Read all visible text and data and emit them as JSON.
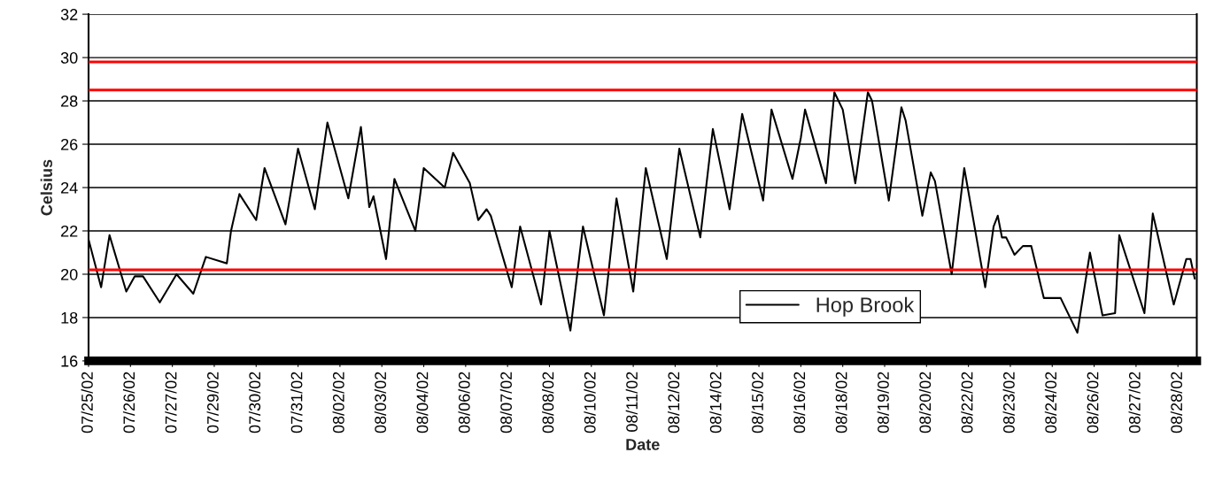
{
  "chart_data": {
    "type": "line",
    "xlabel": "Date",
    "ylabel": "Celsius",
    "ylim": [
      16,
      32
    ],
    "yticks": [
      16,
      18,
      20,
      22,
      24,
      26,
      28,
      30,
      32
    ],
    "categories": [
      "07/25/02",
      null,
      null,
      null,
      null,
      null,
      null,
      null,
      null,
      null,
      "07/26/02",
      null,
      null,
      null,
      null,
      null,
      null,
      null,
      null,
      null,
      "07/27/02",
      null,
      null,
      null,
      null,
      null,
      null,
      null,
      null,
      null,
      "07/29/02",
      null,
      null,
      null,
      null,
      null,
      null,
      null,
      null,
      null,
      "07/30/02",
      null,
      null,
      null,
      null,
      null,
      null,
      null,
      null,
      null,
      "07/31/02",
      null,
      null,
      null,
      null,
      null,
      null,
      null,
      null,
      null,
      "08/02/02",
      null,
      null,
      null,
      null,
      null,
      null,
      null,
      null,
      null,
      "08/03/02",
      null,
      null,
      null,
      null,
      null,
      null,
      null,
      null,
      null,
      "08/04/02",
      null,
      null,
      null,
      null,
      null,
      null,
      null,
      null,
      null,
      "08/06/02",
      null,
      null,
      null,
      null,
      null,
      null,
      null,
      null,
      null,
      "08/07/02",
      null,
      null,
      null,
      null,
      null,
      null,
      null,
      null,
      null,
      "08/08/02",
      null,
      null,
      null,
      null,
      null,
      null,
      null,
      null,
      null,
      "08/10/02",
      null,
      null,
      null,
      null,
      null,
      null,
      null,
      null,
      null,
      "08/11/02",
      null,
      null,
      null,
      null,
      null,
      null,
      null,
      null,
      null,
      "08/12/02",
      null,
      null,
      null,
      null,
      null,
      null,
      null,
      null,
      null,
      "08/14/02",
      null,
      null,
      null,
      null,
      null,
      null,
      null,
      null,
      null,
      "08/15/02",
      null,
      null,
      null,
      null,
      null,
      null,
      null,
      null,
      null,
      "08/16/02",
      null,
      null,
      null,
      null,
      null,
      null,
      null,
      null,
      null,
      "08/18/02",
      null,
      null,
      null,
      null,
      null,
      null,
      null,
      null,
      null,
      "08/19/02",
      null,
      null,
      null,
      null,
      null,
      null,
      null,
      null,
      null,
      "08/20/02",
      null,
      null,
      null,
      null,
      null,
      null,
      null,
      null,
      null,
      "08/22/02",
      null,
      null,
      null,
      null,
      null,
      null,
      null,
      null,
      null,
      "08/23/02",
      null,
      null,
      null,
      null,
      null,
      null,
      null,
      null,
      null,
      "08/24/02",
      null,
      null,
      null,
      null,
      null,
      null,
      null,
      null,
      null,
      "08/26/02",
      null,
      null,
      null,
      null,
      null,
      null,
      null,
      null,
      null,
      "08/27/02",
      null,
      null,
      null,
      null,
      null,
      null,
      null,
      null,
      null,
      "08/28/02",
      null,
      null,
      null,
      null
    ],
    "grid": "y",
    "legend": "bottom right",
    "marker": "none",
    "line_style": "solid",
    "ref_lines": [
      {
        "axis": "y",
        "value": 29.8,
        "color": "#ff0000"
      },
      {
        "axis": "y",
        "value": 28.5,
        "color": "#ff0000"
      },
      {
        "axis": "y",
        "value": 20.2,
        "color": "#ff0000"
      }
    ],
    "series": [
      {
        "name": "Hop Brook",
        "color": "#000000",
        "values": [
          21.6,
          null,
          null,
          19.4,
          null,
          21.8,
          null,
          null,
          null,
          19.2,
          null,
          19.9,
          null,
          19.9,
          null,
          null,
          null,
          18.7,
          null,
          null,
          null,
          20.0,
          null,
          null,
          null,
          19.1,
          null,
          null,
          20.8,
          null,
          null,
          null,
          null,
          20.5,
          22.0,
          null,
          23.7,
          null,
          null,
          null,
          22.5,
          null,
          24.9,
          null,
          null,
          null,
          null,
          22.3,
          null,
          null,
          25.8,
          null,
          null,
          null,
          23.0,
          null,
          null,
          27.0,
          null,
          null,
          null,
          null,
          23.5,
          null,
          null,
          26.8,
          null,
          23.1,
          23.6,
          null,
          null,
          20.7,
          null,
          24.4,
          null,
          null,
          null,
          null,
          22.0,
          null,
          24.9,
          null,
          null,
          null,
          null,
          24.0,
          null,
          25.6,
          null,
          null,
          null,
          24.2,
          null,
          22.5,
          null,
          23.0,
          22.7,
          null,
          null,
          null,
          null,
          19.4,
          null,
          22.2,
          null,
          null,
          null,
          null,
          18.6,
          null,
          22.0,
          null,
          null,
          null,
          null,
          17.4,
          null,
          null,
          22.2,
          null,
          null,
          null,
          null,
          18.1,
          null,
          null,
          23.5,
          null,
          null,
          null,
          19.2,
          null,
          null,
          24.9,
          null,
          null,
          null,
          null,
          20.7,
          null,
          null,
          25.8,
          null,
          null,
          null,
          null,
          21.7,
          null,
          null,
          26.7,
          null,
          null,
          null,
          23.0,
          null,
          null,
          27.4,
          null,
          null,
          null,
          null,
          23.4,
          null,
          27.6,
          null,
          null,
          null,
          null,
          24.4,
          null,
          26.3,
          27.6,
          null,
          null,
          null,
          null,
          24.2,
          null,
          28.4,
          null,
          27.6,
          null,
          null,
          24.2,
          null,
          null,
          28.4,
          28.0,
          null,
          null,
          null,
          23.4,
          null,
          null,
          27.7,
          27.1,
          null,
          null,
          null,
          22.7,
          23.7,
          24.7,
          24.3,
          null,
          null,
          null,
          20.0,
          null,
          null,
          24.9,
          null,
          null,
          null,
          null,
          19.4,
          null,
          22.2,
          22.7,
          21.7,
          21.7,
          null,
          20.9,
          null,
          21.3,
          null,
          21.3,
          null,
          null,
          18.9,
          null,
          null,
          null,
          18.9,
          null,
          null,
          null,
          17.3,
          null,
          null,
          21.0,
          null,
          null,
          18.1,
          null,
          null,
          18.2,
          21.8,
          null,
          null,
          null,
          null,
          null,
          18.2,
          null,
          22.8,
          null,
          null,
          null,
          null,
          18.6,
          null,
          null,
          20.7,
          20.7,
          19.8
        ]
      }
    ]
  }
}
